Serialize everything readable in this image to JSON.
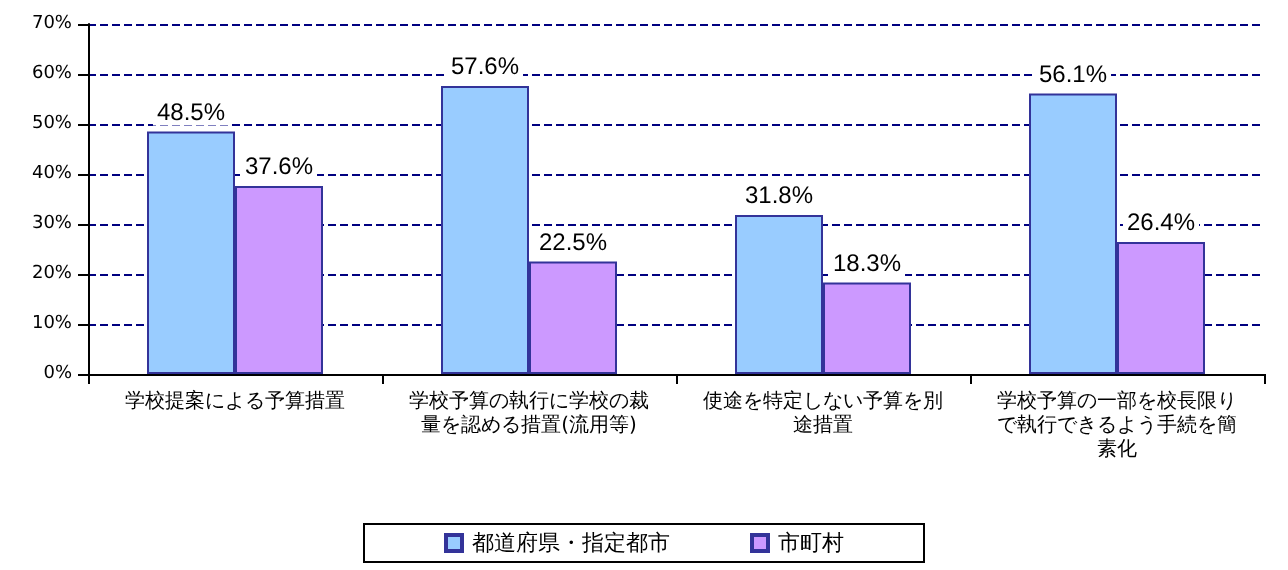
{
  "chart_data": {
    "type": "bar",
    "categories": [
      "学校提案による予算措置",
      "学校予算の執行に学校の裁量を認める措置(流用等)",
      "使途を特定しない予算を別途措置",
      "学校予算の一部を校長限りで執行できるよう手続を簡素化"
    ],
    "series": [
      {
        "name": "都道府県・指定都市",
        "color": "#99ccff",
        "values": [
          48.5,
          57.6,
          31.8,
          56.1
        ],
        "value_labels": [
          "48.5%",
          "57.6%",
          "31.8%",
          "56.1%"
        ]
      },
      {
        "name": "市町村",
        "color": "#cc99ff",
        "values": [
          37.6,
          22.5,
          18.3,
          26.4
        ],
        "value_labels": [
          "37.6%",
          "22.5%",
          "18.3%",
          "26.4%"
        ]
      }
    ],
    "ylim": [
      0,
      70
    ],
    "yticks": [
      {
        "value": 0,
        "label": "0%"
      },
      {
        "value": 10,
        "label": "10%"
      },
      {
        "value": 20,
        "label": "20%"
      },
      {
        "value": 30,
        "label": "30%"
      },
      {
        "value": 40,
        "label": "40%"
      },
      {
        "value": 50,
        "label": "50%"
      },
      {
        "value": 60,
        "label": "60%"
      },
      {
        "value": 70,
        "label": "70%"
      }
    ],
    "grid": "y",
    "legend": "bottom"
  }
}
